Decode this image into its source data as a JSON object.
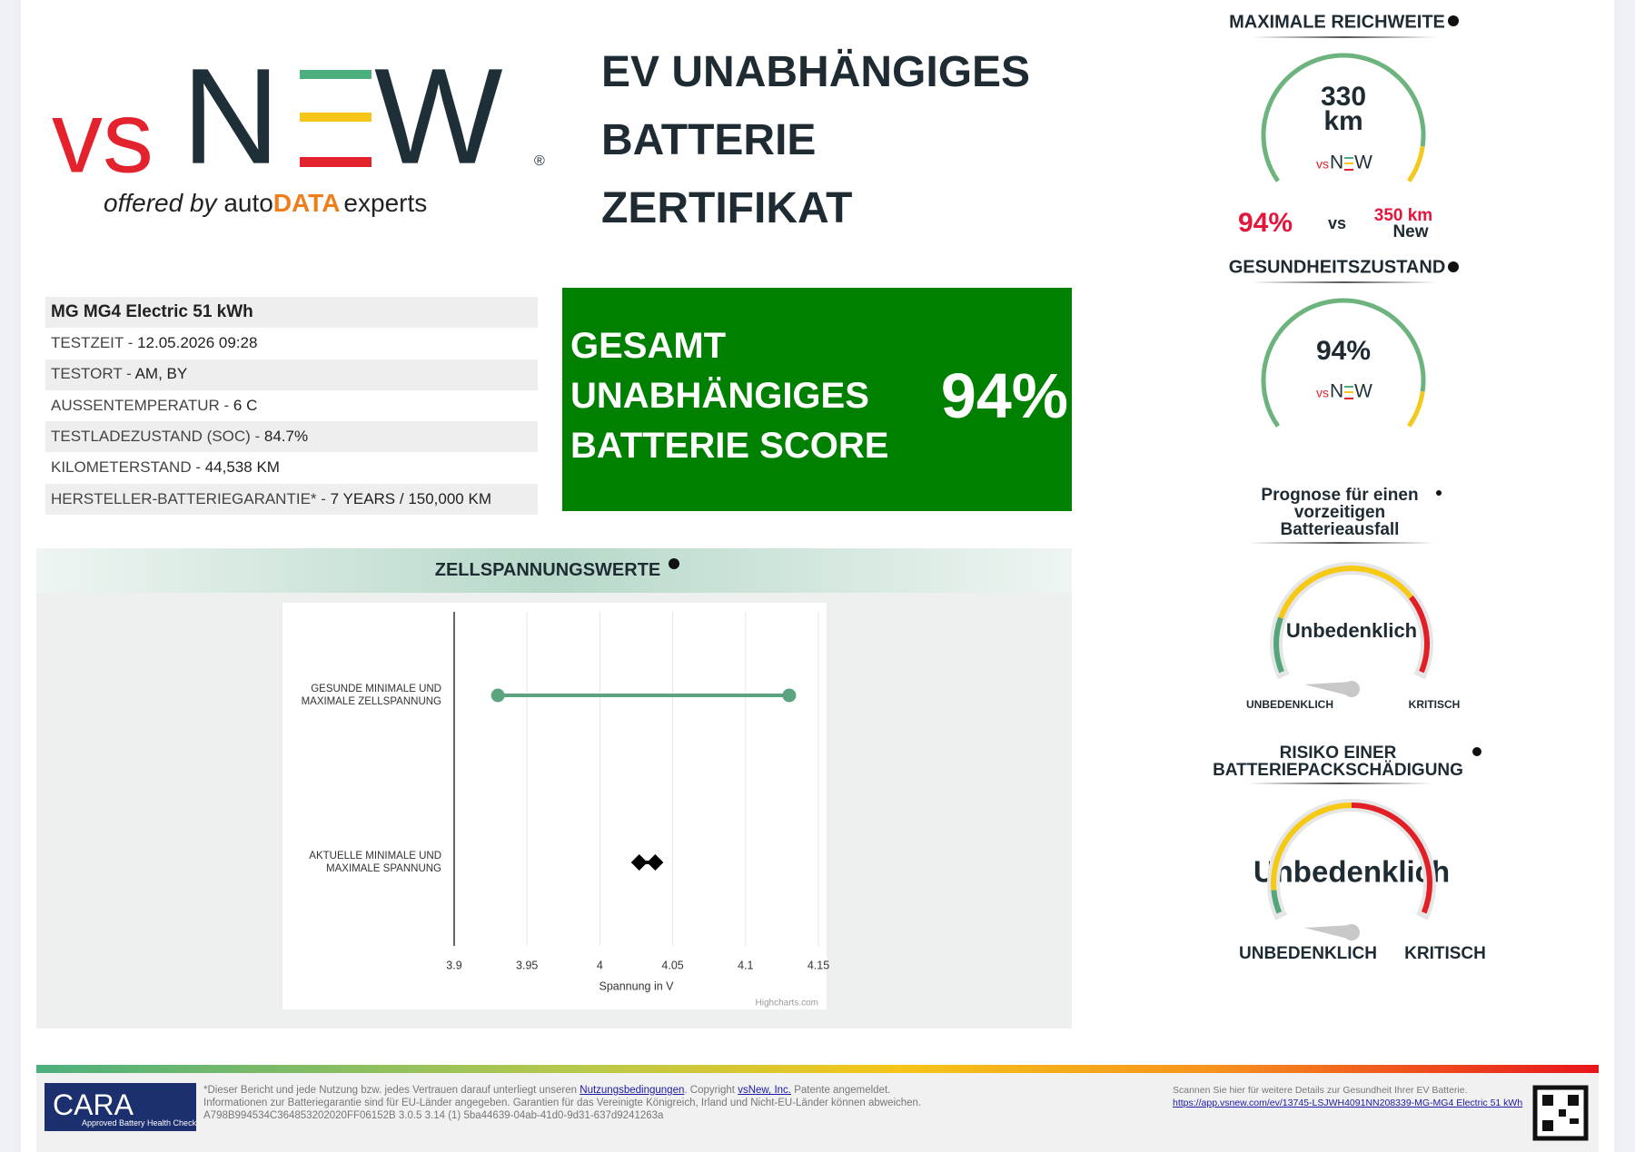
{
  "header": {
    "title_lines": [
      "EV UNABHÄNGIGES",
      "BATTERIE",
      "ZERTIFIKAT"
    ]
  },
  "logo": {
    "vs": "vs",
    "n": "N",
    "w": "W",
    "registered": "®",
    "offered_by": "offered by",
    "auto": "auto",
    "data": "DATA",
    "experts": "experts"
  },
  "vehicle": {
    "name": "MG MG4 Electric 51 kWh",
    "rows": [
      {
        "label": "TESTZEIT -",
        "value": "12.05.2026 09:28"
      },
      {
        "label": "TESTORT -",
        "value": "AM, BY"
      },
      {
        "label": "AUSSENTEMPERATUR -",
        "value": "6 C"
      },
      {
        "label": "TESTLADEZUSTAND (SOC) -",
        "value": "84.7%"
      },
      {
        "label": "KILOMETERSTAND -",
        "value": "44,538 KM"
      },
      {
        "label": "HERSTELLER-BATTERIEGARANTIE* -",
        "value": "7 YEARS / 150,000 KM"
      }
    ]
  },
  "score": {
    "lines": [
      "GESAMT",
      "UNABHÄNGIGES",
      "BATTERIE SCORE"
    ],
    "value": "94%"
  },
  "cell_voltage": {
    "title": "ZELLSPANNUNGSWERTE"
  },
  "chart_data": {
    "type": "dumbbell",
    "categories": [
      "GESUNDE MINIMALE UND MAXIMALE ZELLSPANNUNG",
      "AKTUELLE MINIMALE UND MAXIMALE SPANNUNG"
    ],
    "low": [
      3.93,
      4.027
    ],
    "high": [
      4.13,
      4.038
    ],
    "colors": [
      "#5aa57f",
      "#000000"
    ],
    "markers": [
      "circle",
      "diamond"
    ],
    "xlabel": "Spannung in V",
    "xlim": [
      3.9,
      4.15
    ],
    "xticks": [
      3.9,
      3.95,
      4,
      4.05,
      4.1,
      4.15
    ],
    "grid": true,
    "credits": "Highcharts.com"
  },
  "range": {
    "title": "MAXIMALE REICHWEITE",
    "value": "330",
    "unit": "km",
    "percent": "94%",
    "vs": "vs",
    "new_value": "350 km",
    "new_label": "New"
  },
  "health": {
    "title": "GESUNDHEITSZUSTAND",
    "value": "94%"
  },
  "failure_forecast": {
    "title_lines": [
      "Prognose für einen",
      "vorzeitigen",
      "Batterieausfall"
    ],
    "status": "Unbedenklich",
    "low_label": "UNBEDENKLICH",
    "high_label": "KRITISCH"
  },
  "pack_damage": {
    "title_lines": [
      "RISIKO EINER",
      "BATTERIEPACKSCHÄDIGUNG"
    ],
    "status": "Unbedenklich",
    "low_label": "UNBEDENKLICH",
    "high_label": "KRITISCH"
  },
  "footer": {
    "cara": "CARA",
    "cara_tagline": "Approved Battery Health Check",
    "disclaimer_1": "*Dieser Bericht und jede Nutzung bzw. jedes Vertrauen darauf unterliegt unseren ",
    "terms_link": "Nutzungsbedingungen",
    "disclaimer_2": ". Copyright ",
    "company_link": "vsNew, Inc.",
    "disclaimer_3": " Patente angemeldet. Informationen zur Batteriegarantie sind für EU-Länder angegeben. Garantien für das Vereinigte Königreich, Irland und Nicht-EU-Länder können abweichen.",
    "report_id": "A798B994534C364853202020FF06152B 3.0.5 3.14 (1) 5ba44639-04ab-41d0-9d31-637d9241263a",
    "scan_text": "Scannen Sie hier für weitere Details zur Gesundheit Ihrer EV Batterie.",
    "url": "https://app.vsnew.com/ev/13745-LSJWH4091NN208339-MG-MG4 Electric 51 kWh"
  }
}
